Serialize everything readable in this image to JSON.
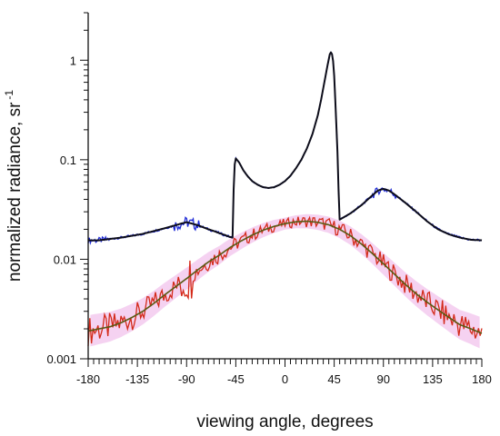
{
  "chart_data": {
    "type": "line",
    "xlabel": "viewing angle, degrees",
    "ylabel": "normalized radiance, sr",
    "ylabel_superscript": "-1",
    "x_scale": "linear",
    "y_scale": "log",
    "xlim": [
      -180,
      180
    ],
    "ylim": [
      0.001,
      3
    ],
    "x_ticks": [
      -180,
      -135,
      -90,
      -45,
      0,
      45,
      90,
      135,
      180
    ],
    "x_tick_labels": [
      "-180",
      "-135",
      "-90",
      "-45",
      "0",
      "45",
      "90",
      "135",
      "180"
    ],
    "y_ticks": [
      0.001,
      0.01,
      0.1,
      1
    ],
    "y_tick_labels": [
      "0.001",
      "0.01",
      "0.1",
      "1"
    ],
    "grid": false,
    "legend": "none",
    "colors": {
      "upper_measured": "#1f2bd6",
      "upper_model": "#0d0d1a",
      "lower_measured": "#d42a1a",
      "lower_model": "#5a5a14",
      "lower_spread": "#f3c7ee"
    },
    "series": [
      {
        "x": [
          -180,
          -170,
          -160,
          -150,
          -140,
          -130,
          -120,
          -110,
          -100,
          -95,
          -90,
          -85,
          -80,
          -75,
          -70,
          -65,
          -60,
          -55,
          -50,
          -48,
          -47,
          -46,
          -45,
          -42,
          -38,
          -34,
          -30,
          -25,
          -20,
          -15,
          -10,
          -5,
          0,
          5,
          10,
          15,
          20,
          25,
          30,
          33,
          36,
          39,
          41,
          42,
          43,
          44,
          45,
          46,
          47,
          48,
          49,
          50,
          60,
          70,
          80,
          85,
          90,
          95,
          100,
          110,
          120,
          130,
          140,
          150,
          160,
          170,
          180
        ],
        "values": [
          0.0155,
          0.0155,
          0.016,
          0.0165,
          0.0172,
          0.018,
          0.0192,
          0.0205,
          0.022,
          0.0228,
          0.0236,
          0.0228,
          0.022,
          0.021,
          0.02,
          0.0192,
          0.0183,
          0.0175,
          0.0167,
          0.0165,
          0.05,
          0.09,
          0.103,
          0.094,
          0.078,
          0.068,
          0.061,
          0.056,
          0.053,
          0.052,
          0.053,
          0.056,
          0.061,
          0.069,
          0.082,
          0.1,
          0.13,
          0.18,
          0.28,
          0.4,
          0.6,
          0.9,
          1.15,
          1.2,
          1.15,
          0.98,
          0.7,
          0.4,
          0.22,
          0.12,
          0.05,
          0.025,
          0.029,
          0.035,
          0.044,
          0.049,
          0.051,
          0.049,
          0.045,
          0.037,
          0.03,
          0.024,
          0.02,
          0.0178,
          0.0165,
          0.0157,
          0.0155
        ]
      },
      {
        "x": [
          -180,
          -170,
          -160,
          -150,
          -140,
          -130,
          -120,
          -110,
          -100,
          -90,
          -80,
          -70,
          -60,
          -50,
          -40,
          -30,
          -20,
          -10,
          0,
          10,
          20,
          30,
          40,
          50,
          60,
          70,
          80,
          90,
          100,
          110,
          120,
          130,
          140,
          150,
          160,
          170,
          180
        ],
        "values": [
          0.0019,
          0.002,
          0.0021,
          0.0023,
          0.0026,
          0.003,
          0.0036,
          0.0044,
          0.0053,
          0.0064,
          0.0078,
          0.0094,
          0.011,
          0.0132,
          0.0153,
          0.0175,
          0.0196,
          0.0214,
          0.0228,
          0.0238,
          0.0241,
          0.0235,
          0.0222,
          0.02,
          0.0172,
          0.0142,
          0.0114,
          0.009,
          0.0071,
          0.0056,
          0.0045,
          0.0037,
          0.0031,
          0.0026,
          0.0022,
          0.002,
          0.0018
        ]
      }
    ]
  }
}
